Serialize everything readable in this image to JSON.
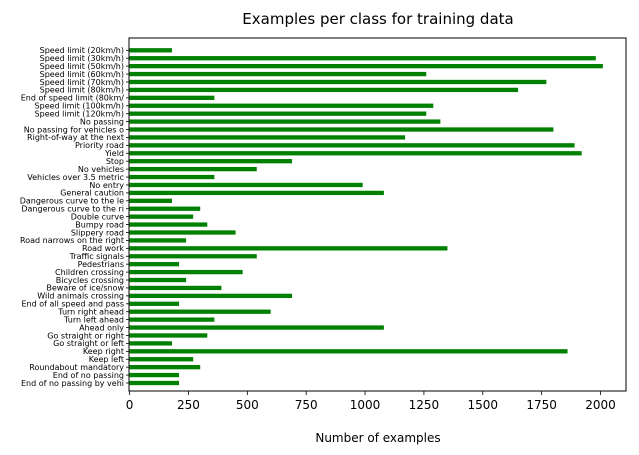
{
  "chart_data": {
    "type": "bar",
    "orientation": "horizontal",
    "title": "Examples per class for training data",
    "xlabel": "Number of examples",
    "ylabel": "",
    "xlim": [
      0,
      2110
    ],
    "xticks": [
      0,
      250,
      500,
      750,
      1000,
      1250,
      1500,
      1750,
      2000
    ],
    "grid": false,
    "legend": "none",
    "bar_color": "#008000",
    "categories": [
      "Speed limit (20km/h)",
      "Speed limit (30km/h)",
      "Speed limit (50km/h)",
      "Speed limit (60km/h)",
      "Speed limit (70km/h)",
      "Speed limit (80km/h)",
      "End of speed limit (80km/",
      "Speed limit (100km/h)",
      "Speed limit (120km/h)",
      "No passing",
      "No passing for vehicles o",
      "Right-of-way at the next",
      "Priority road",
      "Yield",
      "Stop",
      "No vehicles",
      "Vehicles over 3.5 metric",
      "No entry",
      "General caution",
      "Dangerous curve to the le",
      "Dangerous curve to the ri",
      "Double curve",
      "Bumpy road",
      "Slippery road",
      "Road narrows on the right",
      "Road work",
      "Traffic signals",
      "Pedestrians",
      "Children crossing",
      "Bicycles crossing",
      "Beware of ice/snow",
      "Wild animals crossing",
      "End of all speed and pass",
      "Turn right ahead",
      "Turn left ahead",
      "Ahead only",
      "Go straight or right",
      "Go straight or left",
      "Keep right",
      "Keep left",
      "Roundabout mandatory",
      "End of no passing",
      "End of no passing by vehi"
    ],
    "values": [
      180,
      1980,
      2010,
      1260,
      1770,
      1650,
      360,
      1290,
      1260,
      1320,
      1800,
      1170,
      1890,
      1920,
      690,
      540,
      360,
      990,
      1080,
      180,
      300,
      270,
      330,
      450,
      240,
      1350,
      540,
      210,
      480,
      240,
      390,
      690,
      210,
      599,
      360,
      1080,
      330,
      180,
      1860,
      270,
      300,
      210,
      210
    ]
  }
}
